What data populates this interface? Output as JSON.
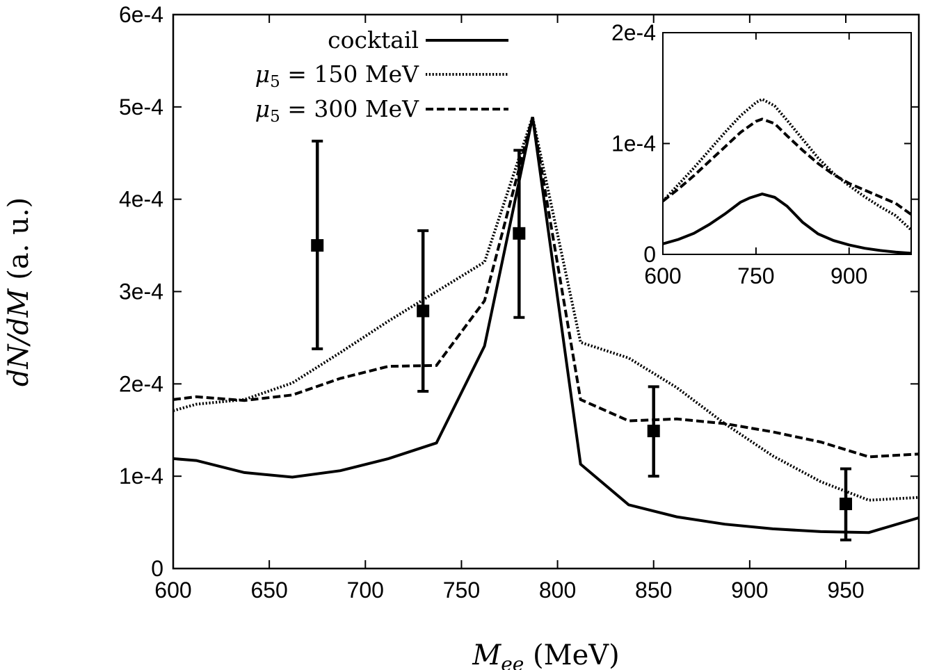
{
  "chart_data": [
    {
      "type": "line",
      "xlabel": {
        "main": "M",
        "sub": "ee",
        "rest": " (MeV)"
      },
      "ylabel": {
        "main": "dN/dM",
        "rest": " (a. u.)"
      },
      "xlim": [
        600,
        988
      ],
      "ylim": [
        0,
        0.0006
      ],
      "xticks": [
        "600",
        "650",
        "700",
        "750",
        "800",
        "850",
        "900",
        "950"
      ],
      "xtick_values": [
        600,
        650,
        700,
        750,
        800,
        850,
        900,
        950
      ],
      "yticks": [
        "0",
        "1e-4",
        "2e-4",
        "3e-4",
        "4e-4",
        "5e-4",
        "6e-4"
      ],
      "ytick_values": [
        0,
        0.0001,
        0.0002,
        0.0003,
        0.0004,
        0.0005,
        0.0006
      ],
      "grid": false,
      "legend_position": "top-center",
      "series": [
        {
          "name": "cocktail",
          "style": "solid",
          "x": [
            600,
            612,
            637,
            662,
            687,
            712,
            737,
            762,
            787,
            812,
            837,
            862,
            887,
            912,
            937,
            962,
            988
          ],
          "y": [
            0.000119,
            0.000117,
            0.000104,
            9.9e-05,
            0.000106,
            0.000119,
            0.000136,
            0.000241,
            0.000489,
            0.000113,
            6.9e-05,
            5.6e-05,
            4.8e-05,
            4.3e-05,
            4e-05,
            3.9e-05,
            5.5e-05
          ]
        },
        {
          "name": "μ5 = 150 MeV",
          "legend": {
            "sym": "μ",
            "sub": "5",
            "rest": " = 150 MeV"
          },
          "style": "dotted",
          "x": [
            600,
            612,
            637,
            662,
            687,
            712,
            737,
            762,
            787,
            812,
            837,
            862,
            887,
            912,
            937,
            962,
            988
          ],
          "y": [
            0.000171,
            0.000178,
            0.000183,
            0.000201,
            0.000234,
            0.000268,
            0.0003,
            0.000332,
            0.000489,
            0.000245,
            0.000228,
            0.000196,
            0.000157,
            0.000122,
            9.4e-05,
            7.4e-05,
            7.7e-05
          ]
        },
        {
          "name": "μ5 = 300 MeV",
          "legend": {
            "sym": "μ",
            "sub": "5",
            "rest": " = 300 MeV"
          },
          "style": "dashed",
          "x": [
            600,
            612,
            637,
            662,
            687,
            712,
            737,
            762,
            787,
            812,
            837,
            862,
            887,
            912,
            937,
            962,
            988
          ],
          "y": [
            0.000183,
            0.000186,
            0.000182,
            0.000188,
            0.000206,
            0.000219,
            0.00022,
            0.00029,
            0.000489,
            0.000183,
            0.00016,
            0.000162,
            0.000157,
            0.000148,
            0.000137,
            0.000121,
            0.000124
          ]
        }
      ],
      "points": [
        {
          "x": 675,
          "y": 0.00035,
          "ylow": 0.000238,
          "yhigh": 0.000463
        },
        {
          "x": 730,
          "y": 0.000279,
          "ylow": 0.000192,
          "yhigh": 0.000366
        },
        {
          "x": 780,
          "y": 0.000363,
          "ylow": 0.000272,
          "yhigh": 0.000453
        },
        {
          "x": 850,
          "y": 0.000149,
          "ylow": 0.0001,
          "yhigh": 0.000197
        },
        {
          "x": 950,
          "y": 7e-05,
          "ylow": 3.1e-05,
          "yhigh": 0.000108
        }
      ]
    },
    {
      "type": "line",
      "role": "inset",
      "xlim": [
        600,
        1000
      ],
      "ylim": [
        0,
        0.0002
      ],
      "xticks": [
        "600",
        "750",
        "900"
      ],
      "xtick_values": [
        600,
        750,
        900
      ],
      "yticks": [
        "0",
        "1e-4",
        "2e-4"
      ],
      "ytick_values": [
        0,
        0.0001,
        0.0002
      ],
      "series": [
        {
          "name": "cocktail",
          "style": "solid",
          "x": [
            600,
            625,
            650,
            675,
            700,
            725,
            740,
            760,
            780,
            800,
            825,
            850,
            875,
            900,
            925,
            950,
            975,
            1000
          ],
          "y": [
            9.5e-06,
            1.35e-05,
            1.9e-05,
            2.7e-05,
            3.65e-05,
            4.7e-05,
            5.1e-05,
            5.45e-05,
            5.15e-05,
            4.35e-05,
            2.9e-05,
            1.85e-05,
            1.25e-05,
            8.5e-06,
            5.5e-06,
            3.5e-06,
            2e-06,
            1e-06
          ]
        },
        {
          "name": "μ5 = 150 MeV",
          "style": "dotted",
          "x": [
            600,
            625,
            650,
            675,
            700,
            725,
            750,
            760,
            780,
            800,
            825,
            850,
            875,
            900,
            925,
            950,
            975,
            1000
          ],
          "y": [
            4.8e-05,
            6.3e-05,
            7.8e-05,
            9.4e-05,
            0.00011,
            0.000125,
            0.000137,
            0.00014,
            0.000134,
            0.000121,
            0.000104,
            8.7e-05,
            7.3e-05,
            6.2e-05,
            5.2e-05,
            4.3e-05,
            3.5e-05,
            2.2e-05
          ]
        },
        {
          "name": "μ5 = 300 MeV",
          "style": "dashed",
          "x": [
            600,
            625,
            650,
            675,
            700,
            725,
            750,
            760,
            780,
            800,
            825,
            850,
            875,
            900,
            925,
            950,
            975,
            1000
          ],
          "y": [
            4.8e-05,
            5.9e-05,
            7.1e-05,
            8.4e-05,
            9.7e-05,
            0.00011,
            0.00012,
            0.000122,
            0.000118,
            0.000107,
            9.4e-05,
            8.2e-05,
            7.2e-05,
            6.4e-05,
            5.8e-05,
            5.2e-05,
            4.6e-05,
            3.6e-05
          ]
        }
      ]
    }
  ]
}
